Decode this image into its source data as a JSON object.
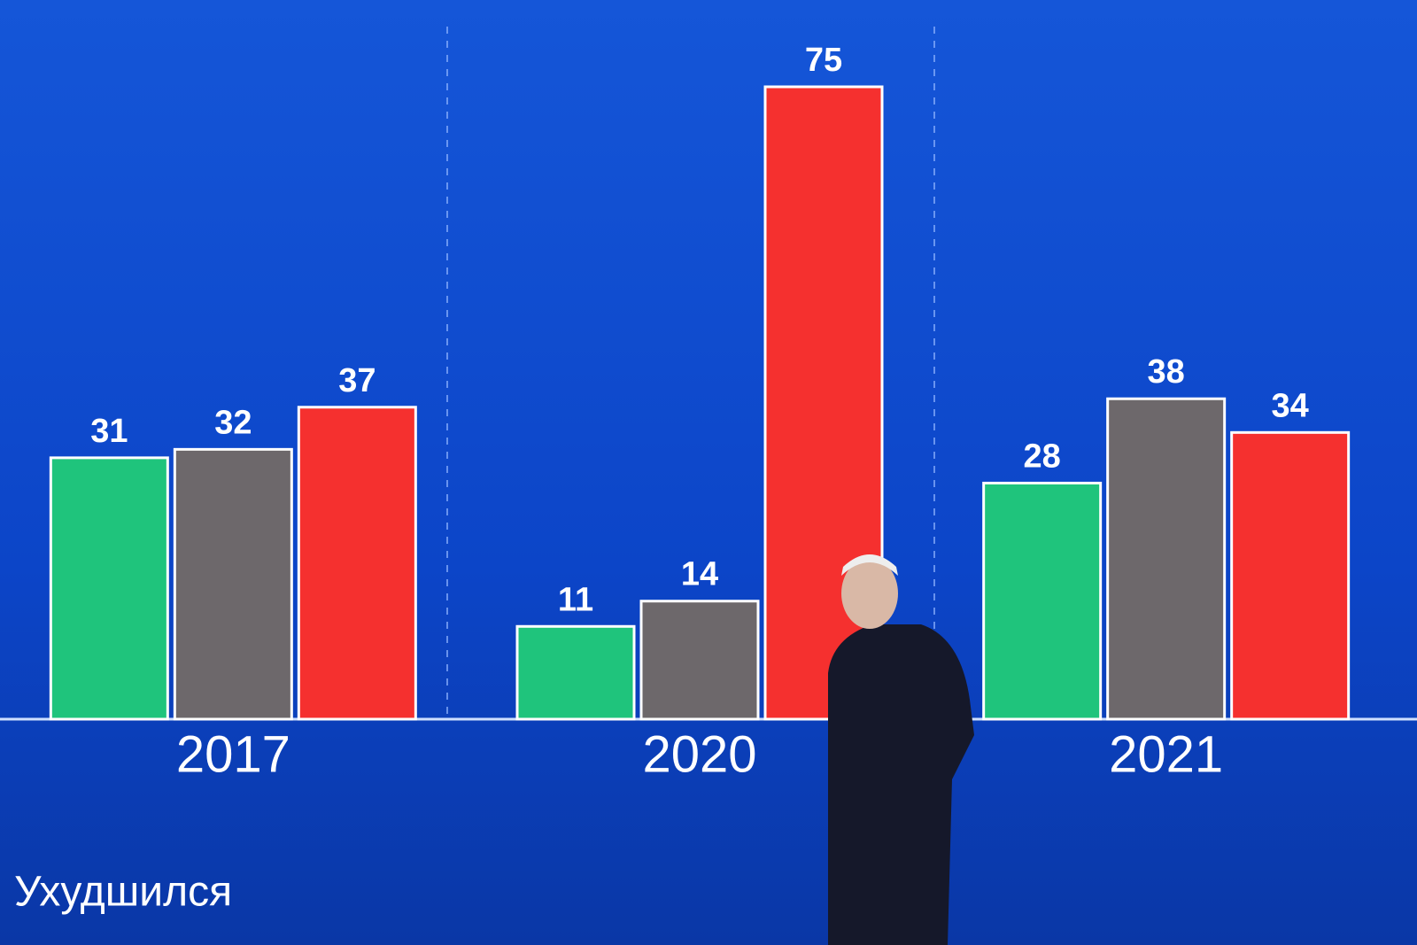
{
  "chart_data": {
    "type": "bar",
    "categories": [
      "2017",
      "2020",
      "2021"
    ],
    "series": [
      {
        "color": "#1fc47c",
        "values": [
          31,
          11,
          28
        ]
      },
      {
        "color": "#6d686b",
        "values": [
          32,
          14,
          38
        ]
      },
      {
        "name": "Ухудшился",
        "color": "#f5302f",
        "values": [
          37,
          75,
          34
        ]
      }
    ],
    "ylim": [
      0,
      85
    ]
  }
}
